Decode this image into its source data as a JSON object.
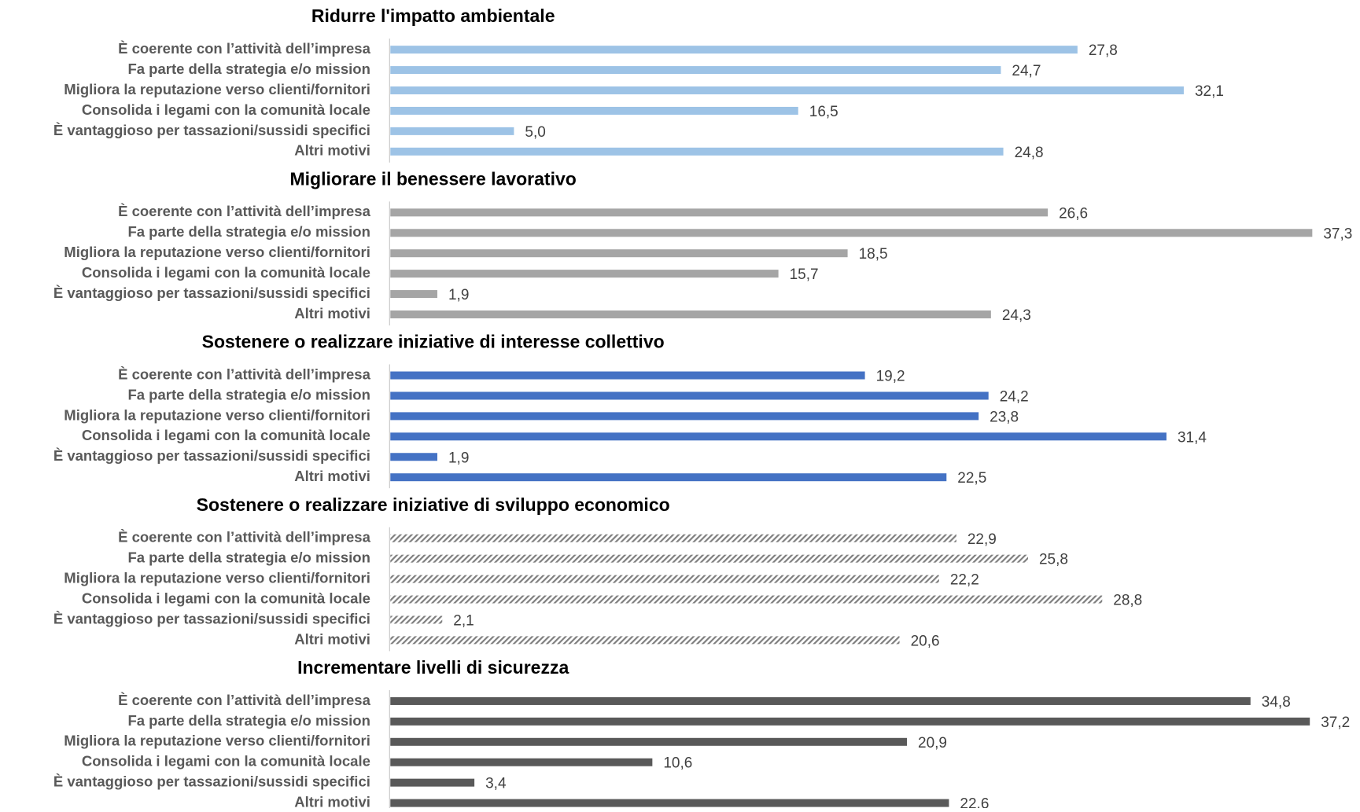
{
  "chart_data": [
    {
      "type": "bar",
      "title": "Ridurre l'impatto ambientale",
      "color": "#9dc3e6",
      "xlim": [
        0,
        38
      ],
      "categories": [
        "È coerente con l’attività dell’impresa",
        "Fa parte della strategia e/o mission",
        "Migliora la reputazione verso clienti/fornitori",
        "Consolida i legami con la comunità locale",
        "È vantaggioso per tassazioni/sussidi specifici",
        "Altri motivi"
      ],
      "values": [
        27.8,
        24.7,
        32.1,
        16.5,
        5.0,
        24.8
      ],
      "value_labels": [
        "27,8",
        "24,7",
        "32,1",
        "16,5",
        "5,0",
        "24,8"
      ]
    },
    {
      "type": "bar",
      "title": "Migliorare il benessere lavorativo",
      "color": "#a5a5a5",
      "xlim": [
        0,
        38
      ],
      "categories": [
        "È coerente con l’attività dell’impresa",
        "Fa parte della strategia e/o mission",
        "Migliora la reputazione verso clienti/fornitori",
        "Consolida i legami con la comunità locale",
        "È vantaggioso per tassazioni/sussidi specifici",
        "Altri motivi"
      ],
      "values": [
        26.6,
        37.3,
        18.5,
        15.7,
        1.9,
        24.3
      ],
      "value_labels": [
        "26,6",
        "37,3",
        "18,5",
        "15,7",
        "1,9",
        "24,3"
      ]
    },
    {
      "type": "bar",
      "title": "Sostenere o realizzare iniziative di interesse collettivo",
      "color": "#4472c4",
      "xlim": [
        0,
        38
      ],
      "categories": [
        "È coerente con l’attività dell’impresa",
        "Fa parte della strategia e/o mission",
        "Migliora la reputazione verso clienti/fornitori",
        "Consolida i legami con la comunità locale",
        "È vantaggioso per tassazioni/sussidi specifici",
        "Altri motivi"
      ],
      "values": [
        19.2,
        24.2,
        23.8,
        31.4,
        1.9,
        22.5
      ],
      "value_labels": [
        "19,2",
        "24,2",
        "23,8",
        "31,4",
        "1,9",
        "22,5"
      ]
    },
    {
      "type": "bar",
      "title": "Sostenere o realizzare iniziative di sviluppo economico",
      "color": "#7f7f7f",
      "hatch": true,
      "xlim": [
        0,
        38
      ],
      "categories": [
        "È coerente con l’attività dell’impresa",
        "Fa parte della strategia e/o mission",
        "Migliora la reputazione verso clienti/fornitori",
        "Consolida i legami con la comunità locale",
        "È vantaggioso per tassazioni/sussidi specifici",
        "Altri motivi"
      ],
      "values": [
        22.9,
        25.8,
        22.2,
        28.8,
        2.1,
        20.6
      ],
      "value_labels": [
        "22,9",
        "25,8",
        "22,2",
        "28,8",
        "2,1",
        "20,6"
      ]
    },
    {
      "type": "bar",
      "title": "Incrementare livelli di sicurezza",
      "color": "#595959",
      "xlim": [
        0,
        38
      ],
      "categories": [
        "È coerente con l’attività dell’impresa",
        "Fa parte della strategia e/o mission",
        "Migliora la reputazione verso clienti/fornitori",
        "Consolida i legami con la comunità locale",
        "È vantaggioso per tassazioni/sussidi specifici",
        "Altri motivi"
      ],
      "values": [
        34.8,
        37.2,
        20.9,
        10.6,
        3.4,
        22.6
      ],
      "value_labels": [
        "34,8",
        "37,2",
        "20,9",
        "10,6",
        "3,4",
        "22,6"
      ]
    }
  ]
}
